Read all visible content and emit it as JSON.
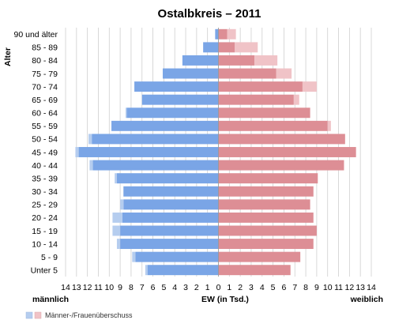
{
  "chart_data": {
    "type": "bar",
    "orientation": "horizontal",
    "title": "Ostalbkreis – 2011",
    "ylabel": "Alter",
    "xlabel": "EW (in Tsd.)",
    "left_label": "männlich",
    "right_label": "weiblich",
    "categories": [
      "90 und älter",
      "85 - 89",
      "80 - 84",
      "75 - 79",
      "70 - 74",
      "65 - 69",
      "60 - 64",
      "55 - 59",
      "50 - 54",
      "45 - 49",
      "40 - 44",
      "35 - 39",
      "30 - 34",
      "25 - 29",
      "20 - 24",
      "15 - 19",
      "10 - 14",
      "5 - 9",
      "Unter 5"
    ],
    "xlim": [
      -14,
      14
    ],
    "xticks": [
      -14,
      -13,
      -12,
      -11,
      -10,
      -9,
      -8,
      -7,
      -6,
      -5,
      -4,
      -3,
      -2,
      -1,
      0,
      1,
      2,
      3,
      4,
      5,
      6,
      7,
      8,
      9,
      10,
      11,
      12,
      13,
      14
    ],
    "xtick_labels": [
      "14",
      "13",
      "12",
      "11",
      "10",
      "9",
      "8",
      "7",
      "6",
      "5",
      "4",
      "3",
      "2",
      "1",
      "0",
      "1",
      "2",
      "3",
      "4",
      "5",
      "6",
      "7",
      "8",
      "9",
      "10",
      "11",
      "12",
      "13",
      "14"
    ],
    "grid": true,
    "series": [
      {
        "name": "männlich",
        "color": "#7aa5e6",
        "values": [
          0.3,
          1.4,
          3.3,
          5.1,
          7.7,
          7.0,
          8.4,
          9.8,
          11.6,
          12.8,
          11.5,
          9.3,
          8.7,
          8.7,
          8.8,
          9.0,
          9.0,
          7.6,
          6.5
        ]
      },
      {
        "name": "weiblich",
        "color": "#dd8e95",
        "values": [
          0.8,
          1.5,
          3.3,
          5.3,
          7.7,
          6.9,
          8.4,
          10.0,
          11.6,
          12.6,
          11.5,
          9.1,
          8.7,
          8.4,
          8.7,
          9.0,
          8.7,
          7.5,
          6.6
        ]
      }
    ],
    "surplus": {
      "name": "Männer-/Frauenüberschuss",
      "male_color": "#b5cdef",
      "female_color": "#f0c3c7",
      "male": [
        0,
        0,
        0,
        0,
        0,
        0,
        0.1,
        0,
        0.3,
        0.3,
        0.3,
        0.2,
        0,
        0.3,
        0.9,
        0.7,
        0.3,
        0.3,
        0.2
      ],
      "female": [
        0.8,
        2.1,
        2.1,
        1.4,
        1.3,
        0.5,
        0,
        0.3,
        0,
        0,
        0,
        0,
        0,
        0,
        0,
        0,
        0,
        0,
        0
      ]
    },
    "legend": {
      "position": "bottom-left",
      "label": "Männer-/Frauenüberschuss"
    }
  }
}
